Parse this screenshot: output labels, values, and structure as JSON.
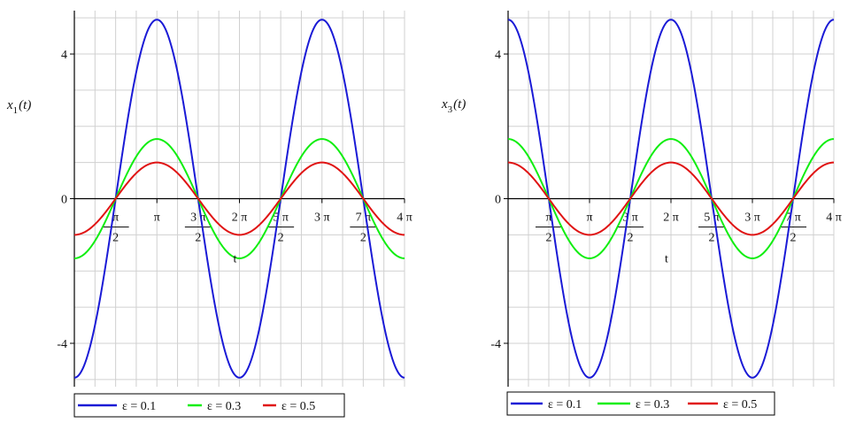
{
  "colors": {
    "series_0": "#1a1ad6",
    "series_1": "#11ee11",
    "series_2": "#e01414",
    "grid": "#d0d0d0",
    "axis": "#000000"
  },
  "chart_data": [
    {
      "type": "line",
      "title": "",
      "xlabel": "t",
      "ylabel_main": "x",
      "ylabel_sub": "1",
      "ylabel_tail": "(t)",
      "xlim_over_pi": [
        0,
        4
      ],
      "ylim": [
        -5.2,
        5.2
      ],
      "yticks": [
        {
          "value": 4,
          "label": "4"
        },
        {
          "value": 0,
          "label": "0"
        },
        {
          "value": -4,
          "label": "-4"
        }
      ],
      "xticks": [
        {
          "value_over_pi": 0.5,
          "num": "π",
          "den": "2"
        },
        {
          "value_over_pi": 1,
          "label": "π"
        },
        {
          "value_over_pi": 1.5,
          "num": "3 π",
          "den": "2"
        },
        {
          "value_over_pi": 2,
          "label": "2 π"
        },
        {
          "value_over_pi": 2.5,
          "num": "5 π",
          "den": "2"
        },
        {
          "value_over_pi": 3,
          "label": "3 π"
        },
        {
          "value_over_pi": 3.5,
          "num": "7 π",
          "den": "2"
        },
        {
          "value_over_pi": 4,
          "label": "4 π"
        }
      ],
      "series": [
        {
          "name": "ε = 0.1",
          "function": "-A·cos(t)",
          "amplitude": 4.95
        },
        {
          "name": "ε = 0.3",
          "function": "-A·cos(t)",
          "amplitude": 1.65
        },
        {
          "name": "ε = 0.5",
          "function": "-A·cos(t)",
          "amplitude": 1.0
        }
      ],
      "grid": true,
      "legend": "bottom"
    },
    {
      "type": "line",
      "title": "",
      "xlabel": "t",
      "ylabel_main": "x",
      "ylabel_sub": "3",
      "ylabel_tail": "(t)",
      "xlim_over_pi": [
        0,
        4
      ],
      "ylim": [
        -5.2,
        5.2
      ],
      "yticks": [
        {
          "value": 4,
          "label": "4"
        },
        {
          "value": 0,
          "label": "0"
        },
        {
          "value": -4,
          "label": "-4"
        }
      ],
      "xticks": [
        {
          "value_over_pi": 0.5,
          "num": "π",
          "den": "2"
        },
        {
          "value_over_pi": 1,
          "label": "π"
        },
        {
          "value_over_pi": 1.5,
          "num": "3 π",
          "den": "2"
        },
        {
          "value_over_pi": 2,
          "label": "2 π"
        },
        {
          "value_over_pi": 2.5,
          "num": "5 π",
          "den": "2"
        },
        {
          "value_over_pi": 3,
          "label": "3 π"
        },
        {
          "value_over_pi": 3.5,
          "num": "7 π",
          "den": "2"
        },
        {
          "value_over_pi": 4,
          "label": "4 π"
        }
      ],
      "series": [
        {
          "name": "ε = 0.1",
          "function": "A·cos(t)",
          "amplitude": 4.95
        },
        {
          "name": "ε = 0.3",
          "function": "A·cos(t)",
          "amplitude": 1.65
        },
        {
          "name": "ε = 0.5",
          "function": "A·cos(t)",
          "amplitude": 1.0
        }
      ],
      "grid": true,
      "legend": "bottom"
    }
  ]
}
